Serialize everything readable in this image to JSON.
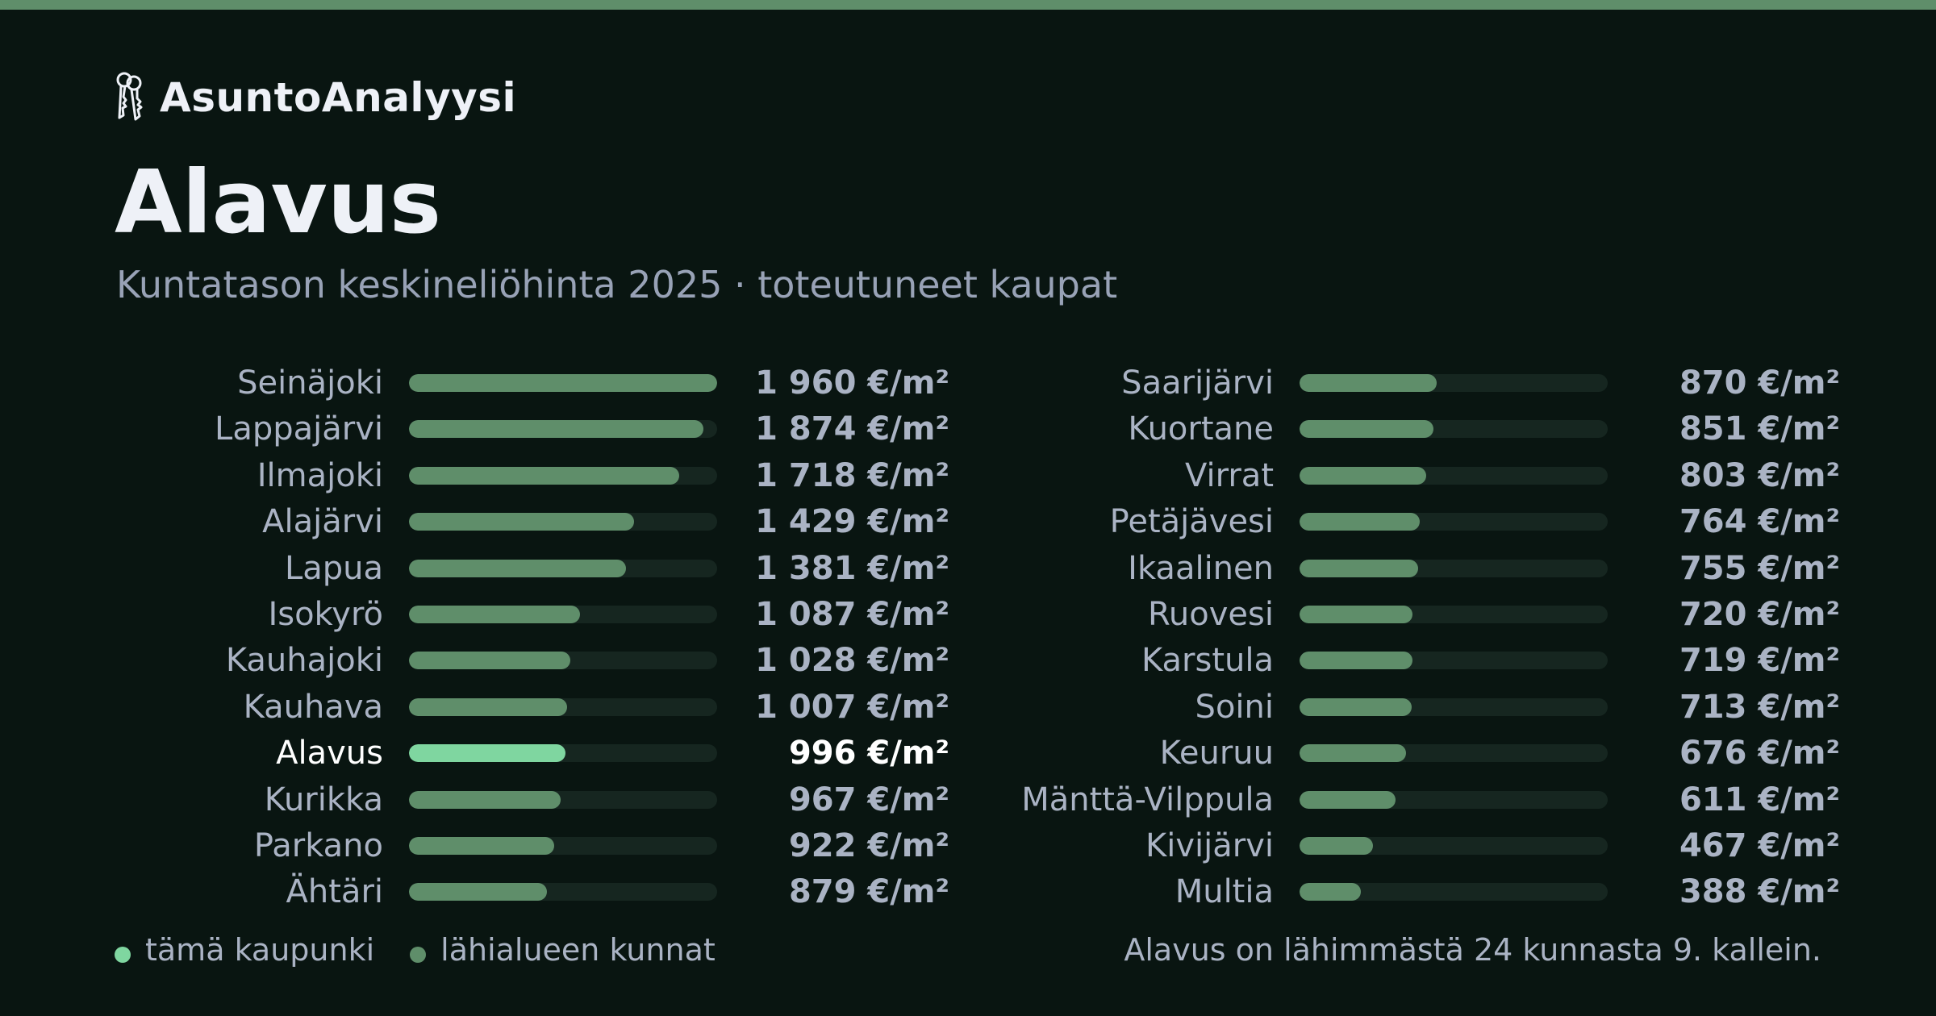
{
  "brand": {
    "name": "AsuntoAnalyysi",
    "icon": "keys-icon"
  },
  "title": "Alavus",
  "subtitle": "Kuntatason keskineliöhinta 2025 · toteutuneet kaupat",
  "colors": {
    "accent": "#7fd6a0",
    "bar": "#5f8e6a",
    "track": "#162620",
    "background": "#091511"
  },
  "chart_data": {
    "type": "bar",
    "orientation": "horizontal",
    "unit": "€/m²",
    "xlim": [
      0,
      1960
    ],
    "highlight": "Alavus",
    "columns": [
      {
        "categories": [
          "Seinäjoki",
          "Lappajärvi",
          "Ilmajoki",
          "Alajärvi",
          "Lapua",
          "Isokyrö",
          "Kauhajoki",
          "Kauhava",
          "Alavus",
          "Kurikka",
          "Parkano",
          "Ähtäri"
        ],
        "values": [
          1960,
          1874,
          1718,
          1429,
          1381,
          1087,
          1028,
          1007,
          996,
          967,
          922,
          879
        ],
        "labels": [
          "1 960 €/m²",
          "1 874 €/m²",
          "1 718 €/m²",
          "1 429 €/m²",
          "1 381 €/m²",
          "1 087 €/m²",
          "1 028 €/m²",
          "1 007 €/m²",
          "996 €/m²",
          "967 €/m²",
          "922 €/m²",
          "879 €/m²"
        ]
      },
      {
        "categories": [
          "Saarijärvi",
          "Kuortane",
          "Virrat",
          "Petäjävesi",
          "Ikaalinen",
          "Ruovesi",
          "Karstula",
          "Soini",
          "Keuruu",
          "Mänttä-Vilppula",
          "Kivijärvi",
          "Multia"
        ],
        "values": [
          870,
          851,
          803,
          764,
          755,
          720,
          719,
          713,
          676,
          611,
          467,
          388
        ],
        "labels": [
          "870 €/m²",
          "851 €/m²",
          "803 €/m²",
          "764 €/m²",
          "755 €/m²",
          "720 €/m²",
          "719 €/m²",
          "713 €/m²",
          "676 €/m²",
          "611 €/m²",
          "467 €/m²",
          "388 €/m²"
        ]
      }
    ]
  },
  "legend": {
    "this_city": "tämä kaupunki",
    "nearby": "lähialueen kunnat"
  },
  "footnote": "Alavus on lähimmästä 24 kunnasta 9. kallein."
}
